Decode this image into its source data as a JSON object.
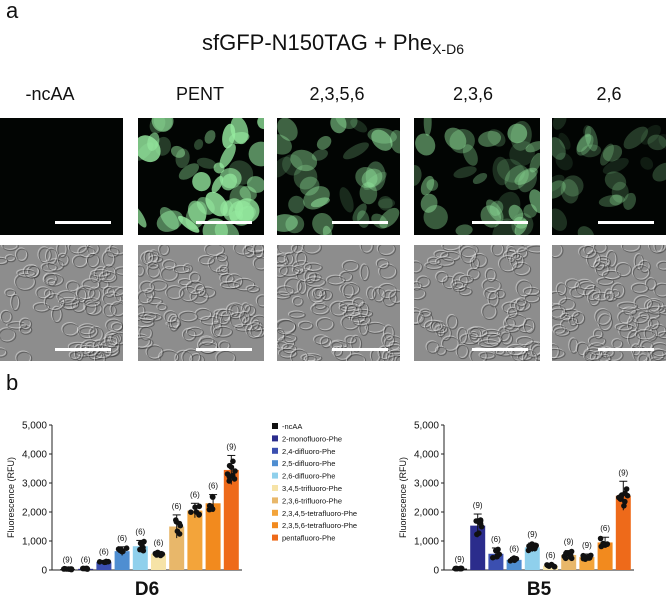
{
  "figure": {
    "panel_a_letter": "a",
    "panel_b_letter": "b",
    "title_main": "sfGFP-N150TAG + Phe",
    "title_sub": "X-D6",
    "column_labels": [
      "-ncAA",
      "PENT",
      "2,3,5,6",
      "2,3,6",
      "2,6"
    ],
    "fluo_intensity": [
      0.0,
      0.85,
      0.55,
      0.6,
      0.35
    ]
  },
  "legend": [
    {
      "label": "-ncAA",
      "color": "#111111"
    },
    {
      "label": "2-monofluoro-Phe",
      "color": "#2b2c8c"
    },
    {
      "label": "2,4-difluoro-Phe",
      "color": "#3b4fb0"
    },
    {
      "label": "2,5-difluoro-Phe",
      "color": "#4f8ed1"
    },
    {
      "label": "2,6-difluoro-Phe",
      "color": "#8fd0ec"
    },
    {
      "label": "3,4,5-trifluoro-Phe",
      "color": "#f6e3a7"
    },
    {
      "label": "2,3,6-trifluoro-Phe",
      "color": "#e8b76a"
    },
    {
      "label": "2,3,4,5-tetrafluoro-Phe",
      "color": "#f3a43a"
    },
    {
      "label": "2,3,5,6-tetrafluoro-Phe",
      "color": "#f28a1e"
    },
    {
      "label": "pentafluoro-Phe",
      "color": "#ee6a1a"
    }
  ],
  "chart_data": [
    {
      "type": "bar",
      "title": "D6",
      "ylabel": "Fluorescence (RFU)",
      "ylim": [
        0,
        5000
      ],
      "yticks": [
        "0",
        "1000",
        "2000",
        "3000",
        "4000",
        "5000"
      ],
      "values": [
        30,
        40,
        280,
        650,
        820,
        560,
        1500,
        2050,
        2300,
        3450
      ],
      "errors": [
        20,
        20,
        50,
        150,
        200,
        80,
        400,
        250,
        300,
        500
      ],
      "n_labels": [
        "(9)",
        "(6)",
        "(6)",
        "(6)",
        "(6)",
        "(6)",
        "(6)",
        "(6)",
        "(6)",
        "(9)"
      ]
    },
    {
      "type": "bar",
      "title": "B5",
      "ylabel": "Fluorescence (RFU)",
      "ylim": [
        0,
        5000
      ],
      "yticks": [
        "0",
        "1000",
        "2000",
        "3000",
        "4000",
        "5000"
      ],
      "values": [
        50,
        1530,
        560,
        350,
        780,
        150,
        520,
        450,
        950,
        2560
      ],
      "errors": [
        20,
        400,
        200,
        80,
        150,
        60,
        150,
        100,
        180,
        500
      ],
      "n_labels": [
        "(9)",
        "(9)",
        "(6)",
        "(6)",
        "(9)",
        "(6)",
        "(9)",
        "(9)",
        "(6)",
        "(9)"
      ]
    }
  ]
}
